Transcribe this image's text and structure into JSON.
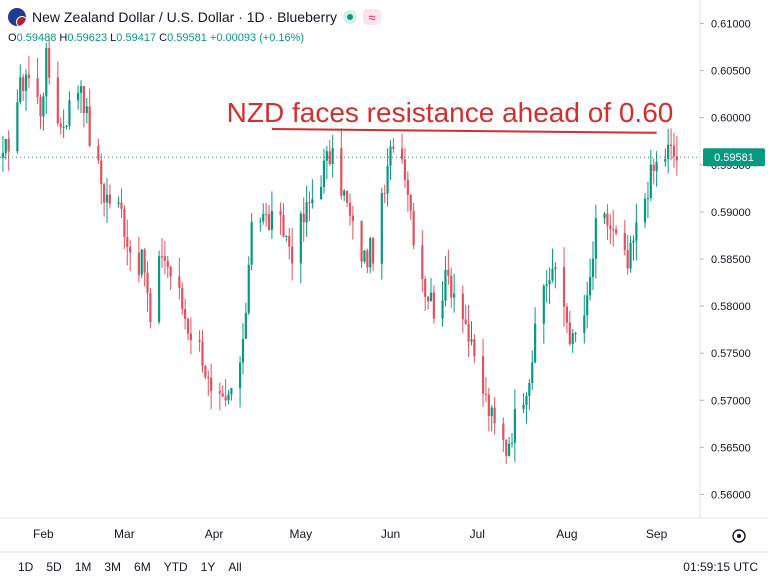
{
  "header": {
    "title": "New Zealand Dollar / U.S. Dollar · 1D · Blueberry",
    "flag_icon": "nz-us-flag-icon",
    "status_icon": "market-open-dot-icon",
    "indicator_icon": "wave-indicator-icon",
    "wave_glyph": "≈"
  },
  "ohlc": {
    "o_label": "O",
    "o": "0.59488",
    "h_label": "H",
    "h": "0.59623",
    "l_label": "L",
    "l": "0.59417",
    "c_label": "C",
    "c": "0.59581",
    "change": "+0.00093 (+0.16%)",
    "color": "#089981"
  },
  "chart_data": {
    "type": "candlestick",
    "annotation": "NZD faces resistance ahead of 0.60",
    "annotation_color": "#d32f2f",
    "resistance_line": {
      "start": "2023-04-21",
      "end": "2023-09-01",
      "y_start": 0.5988,
      "y_end": 0.5984
    },
    "last_price": 0.59581,
    "last_price_label": "0.59581",
    "up_color": "#089981",
    "down_color": "#e05260",
    "ylim": [
      0.5575,
      0.6125
    ],
    "yticks": [
      "0.56000",
      "0.56500",
      "0.57000",
      "0.57500",
      "0.58000",
      "0.58500",
      "0.59000",
      "0.59500",
      "0.60000",
      "0.60500",
      "0.61000"
    ],
    "xlabels": [
      {
        "label": "Feb",
        "date": "2023-02-01"
      },
      {
        "label": "Mar",
        "date": "2023-03-01"
      },
      {
        "label": "Apr",
        "date": "2023-04-01"
      },
      {
        "label": "May",
        "date": "2023-05-01"
      },
      {
        "label": "Jun",
        "date": "2023-06-01"
      },
      {
        "label": "Jul",
        "date": "2023-07-01"
      },
      {
        "label": "Aug",
        "date": "2023-08-01"
      },
      {
        "label": "Sep",
        "date": "2023-09-01"
      }
    ],
    "x_range": [
      "2023-01-17",
      "2023-09-16"
    ],
    "x_settings_icon": "settings-gear-icon",
    "anchors": [
      [
        "2023-01-18",
        0.595
      ],
      [
        "2023-01-23",
        0.602
      ],
      [
        "2023-01-26",
        0.605
      ],
      [
        "2023-01-31",
        0.601
      ],
      [
        "2023-02-02",
        0.606
      ],
      [
        "2023-02-07",
        0.599
      ],
      [
        "2023-02-14",
        0.604
      ],
      [
        "2023-02-17",
        0.598
      ],
      [
        "2023-02-22",
        0.592
      ],
      [
        "2023-02-28",
        0.59
      ],
      [
        "2023-03-03",
        0.586
      ],
      [
        "2023-03-08",
        0.584
      ],
      [
        "2023-03-10",
        0.578
      ],
      [
        "2023-03-14",
        0.586
      ],
      [
        "2023-03-20",
        0.581
      ],
      [
        "2023-03-23",
        0.578
      ],
      [
        "2023-03-28",
        0.575
      ],
      [
        "2023-03-31",
        0.57
      ],
      [
        "2023-04-05",
        0.569
      ],
      [
        "2023-04-11",
        0.575
      ],
      [
        "2023-04-14",
        0.59
      ],
      [
        "2023-04-20",
        0.589
      ],
      [
        "2023-04-25",
        0.588
      ],
      [
        "2023-04-28",
        0.586
      ],
      [
        "2023-05-03",
        0.59
      ],
      [
        "2023-05-08",
        0.594
      ],
      [
        "2023-05-11",
        0.596
      ],
      [
        "2023-05-15",
        0.593
      ],
      [
        "2023-05-19",
        0.588
      ],
      [
        "2023-05-23",
        0.585
      ],
      [
        "2023-05-26",
        0.586
      ],
      [
        "2023-05-30",
        0.592
      ],
      [
        "2023-06-02",
        0.598
      ],
      [
        "2023-06-06",
        0.595
      ],
      [
        "2023-06-09",
        0.588
      ],
      [
        "2023-06-13",
        0.582
      ],
      [
        "2023-06-16",
        0.58
      ],
      [
        "2023-06-21",
        0.583
      ],
      [
        "2023-06-26",
        0.58
      ],
      [
        "2023-06-29",
        0.575
      ],
      [
        "2023-07-04",
        0.57
      ],
      [
        "2023-07-07",
        0.567
      ],
      [
        "2023-07-11",
        0.565
      ],
      [
        "2023-07-14",
        0.568
      ],
      [
        "2023-07-19",
        0.573
      ],
      [
        "2023-07-24",
        0.582
      ],
      [
        "2023-07-27",
        0.584
      ],
      [
        "2023-07-31",
        0.58
      ],
      [
        "2023-08-03",
        0.576
      ],
      [
        "2023-08-08",
        0.58
      ],
      [
        "2023-08-11",
        0.588
      ],
      [
        "2023-08-15",
        0.589
      ],
      [
        "2023-08-18",
        0.587
      ],
      [
        "2023-08-22",
        0.584
      ],
      [
        "2023-08-25",
        0.588
      ],
      [
        "2023-08-29",
        0.593
      ],
      [
        "2023-09-01",
        0.595
      ],
      [
        "2023-09-05",
        0.5965
      ],
      [
        "2023-09-08",
        0.5958
      ]
    ]
  },
  "timeframes": [
    "1D",
    "5D",
    "1M",
    "3M",
    "6M",
    "YTD",
    "1Y",
    "All"
  ],
  "clock": "01:59:15 UTC"
}
